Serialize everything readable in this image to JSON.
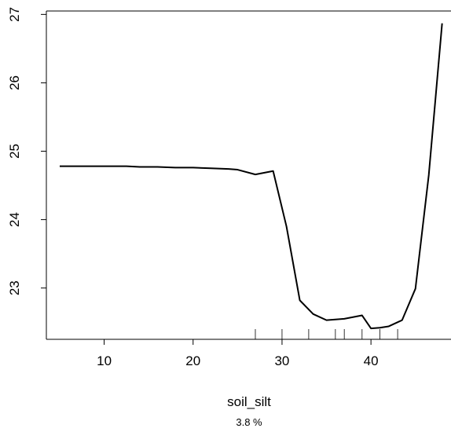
{
  "chart_data": {
    "type": "line",
    "xlabel": "soil_silt",
    "subtitle": "3.8 %",
    "ylabel": "",
    "xlim": [
      3.5,
      49
    ],
    "ylim": [
      22.25,
      27.05
    ],
    "x_ticks": [
      10,
      20,
      30,
      40
    ],
    "y_ticks": [
      23,
      24,
      25,
      26,
      27
    ],
    "grid": false,
    "series": [
      {
        "x": [
          5,
          7,
          9,
          11,
          12.5,
          14,
          16,
          18,
          20,
          22,
          24,
          25,
          27,
          29,
          30.5,
          32,
          33.5,
          35,
          37,
          39,
          40,
          41,
          42,
          43.5,
          45,
          46.5,
          48
        ],
        "y": [
          24.78,
          24.78,
          24.78,
          24.78,
          24.78,
          24.77,
          24.77,
          24.76,
          24.76,
          24.75,
          24.74,
          24.73,
          24.66,
          24.71,
          23.9,
          22.82,
          22.62,
          22.53,
          22.55,
          22.6,
          22.41,
          22.42,
          22.44,
          22.53,
          22.99,
          24.65,
          26.87
        ]
      }
    ],
    "rug": [
      27,
      30,
      33,
      36,
      37,
      39,
      41,
      43
    ]
  }
}
